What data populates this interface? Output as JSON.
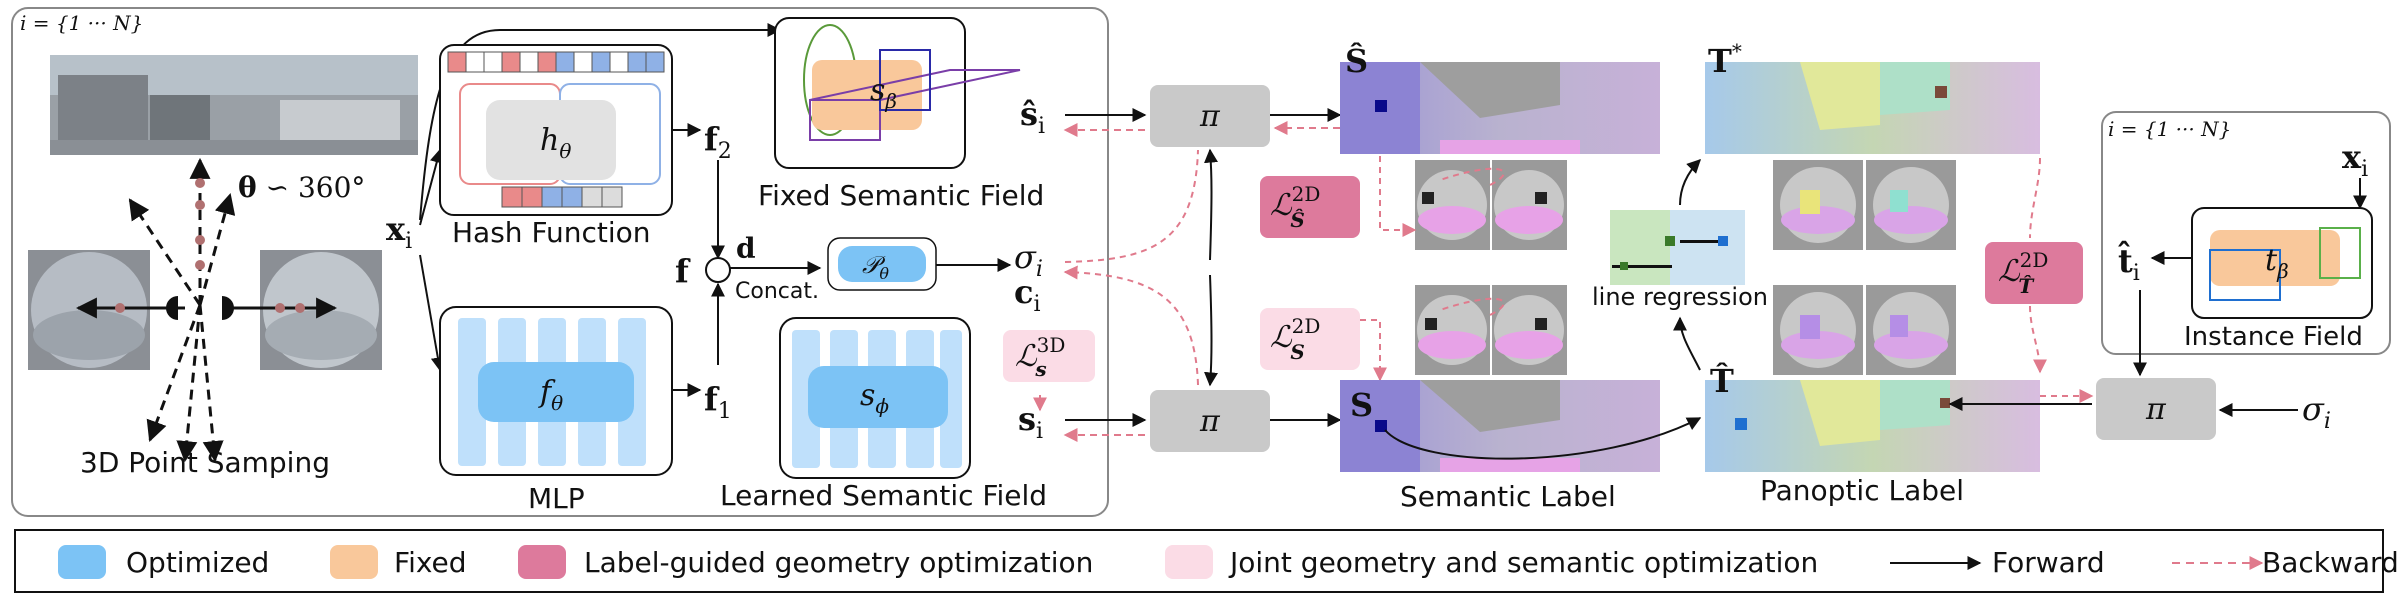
{
  "pipeline": {
    "index_label": "i = {1 ··· N}",
    "theta_label": "θ ∽ 360°",
    "sampling_caption": "3D Point Samping",
    "xi": "x",
    "xi_sub": "i",
    "hash_caption": "Hash Function",
    "h_theta": "h",
    "h_theta_sub": "θ",
    "f2": "f",
    "f2_sub": "2",
    "f1": "f",
    "f1_sub": "1",
    "f": "f",
    "d": "d",
    "concat": "Concat.",
    "p_theta": "𝒫",
    "p_theta_sub": "θ",
    "sigma_i": "σ",
    "sigma_i_sub": "i",
    "c_i": "c",
    "c_i_sub": "i",
    "mlp_caption": "MLP",
    "f_theta": "f",
    "f_theta_sub": "θ",
    "fixed_field_caption": "Fixed Semantic Field",
    "s_beta": "s",
    "s_beta_sub": "β",
    "s_hat_i": "ŝ",
    "s_hat_i_sub": "i",
    "learned_field_caption": "Learned Semantic Field",
    "s_phi": "s",
    "s_phi_sub": "ϕ",
    "s_i": "s",
    "s_i_sub": "i",
    "loss_3d": "ℒ",
    "loss_3d_sup": "3D",
    "loss_3d_sub": "s",
    "pi": "π"
  },
  "labels": {
    "s_hat_label": "Ŝ",
    "t_star_label": "T*",
    "t_star_base": "T",
    "t_star_sup": "*",
    "loss_2d_hat_s": "ℒ",
    "loss_2d_hat_s_sup": "2D",
    "loss_2d_hat_s_sub": "Ŝ",
    "loss_2d_s": "ℒ",
    "loss_2d_s_sup": "2D",
    "loss_2d_s_sub": "S",
    "loss_2d_hat_t": "ℒ",
    "loss_2d_hat_t_sup": "2D",
    "loss_2d_hat_t_sub": "T̂",
    "line_regression": "line regression",
    "s_label": "S",
    "t_hat_label": "T̂",
    "semantic_label_caption": "Semantic Label",
    "panoptic_label_caption": "Panoptic Label"
  },
  "instance": {
    "index_label": "i = {1 ··· N}",
    "x_i": "x",
    "x_i_sub": "i",
    "t_hat_i": "t̂",
    "t_hat_i_sub": "i",
    "t_beta": "t",
    "t_beta_sub": "β",
    "caption": "Instance Field",
    "sigma_i": "σ",
    "sigma_i_sub": "i",
    "pi": "π"
  },
  "legend": [
    {
      "label": "Optimized",
      "color": "#7cc3f5",
      "type": "swatch"
    },
    {
      "label": "Fixed",
      "color": "#f9c89b",
      "type": "swatch"
    },
    {
      "label": "Label-guided geometry optimization",
      "color": "#dd7a9c",
      "type": "swatch"
    },
    {
      "label": "Joint geometry and semantic optimization",
      "color": "#fbdce6",
      "type": "swatch"
    },
    {
      "label": "Forward",
      "color": "#111111",
      "type": "arrow"
    },
    {
      "label": "Backward",
      "color": "#e07a8c",
      "type": "dashed-arrow"
    }
  ]
}
